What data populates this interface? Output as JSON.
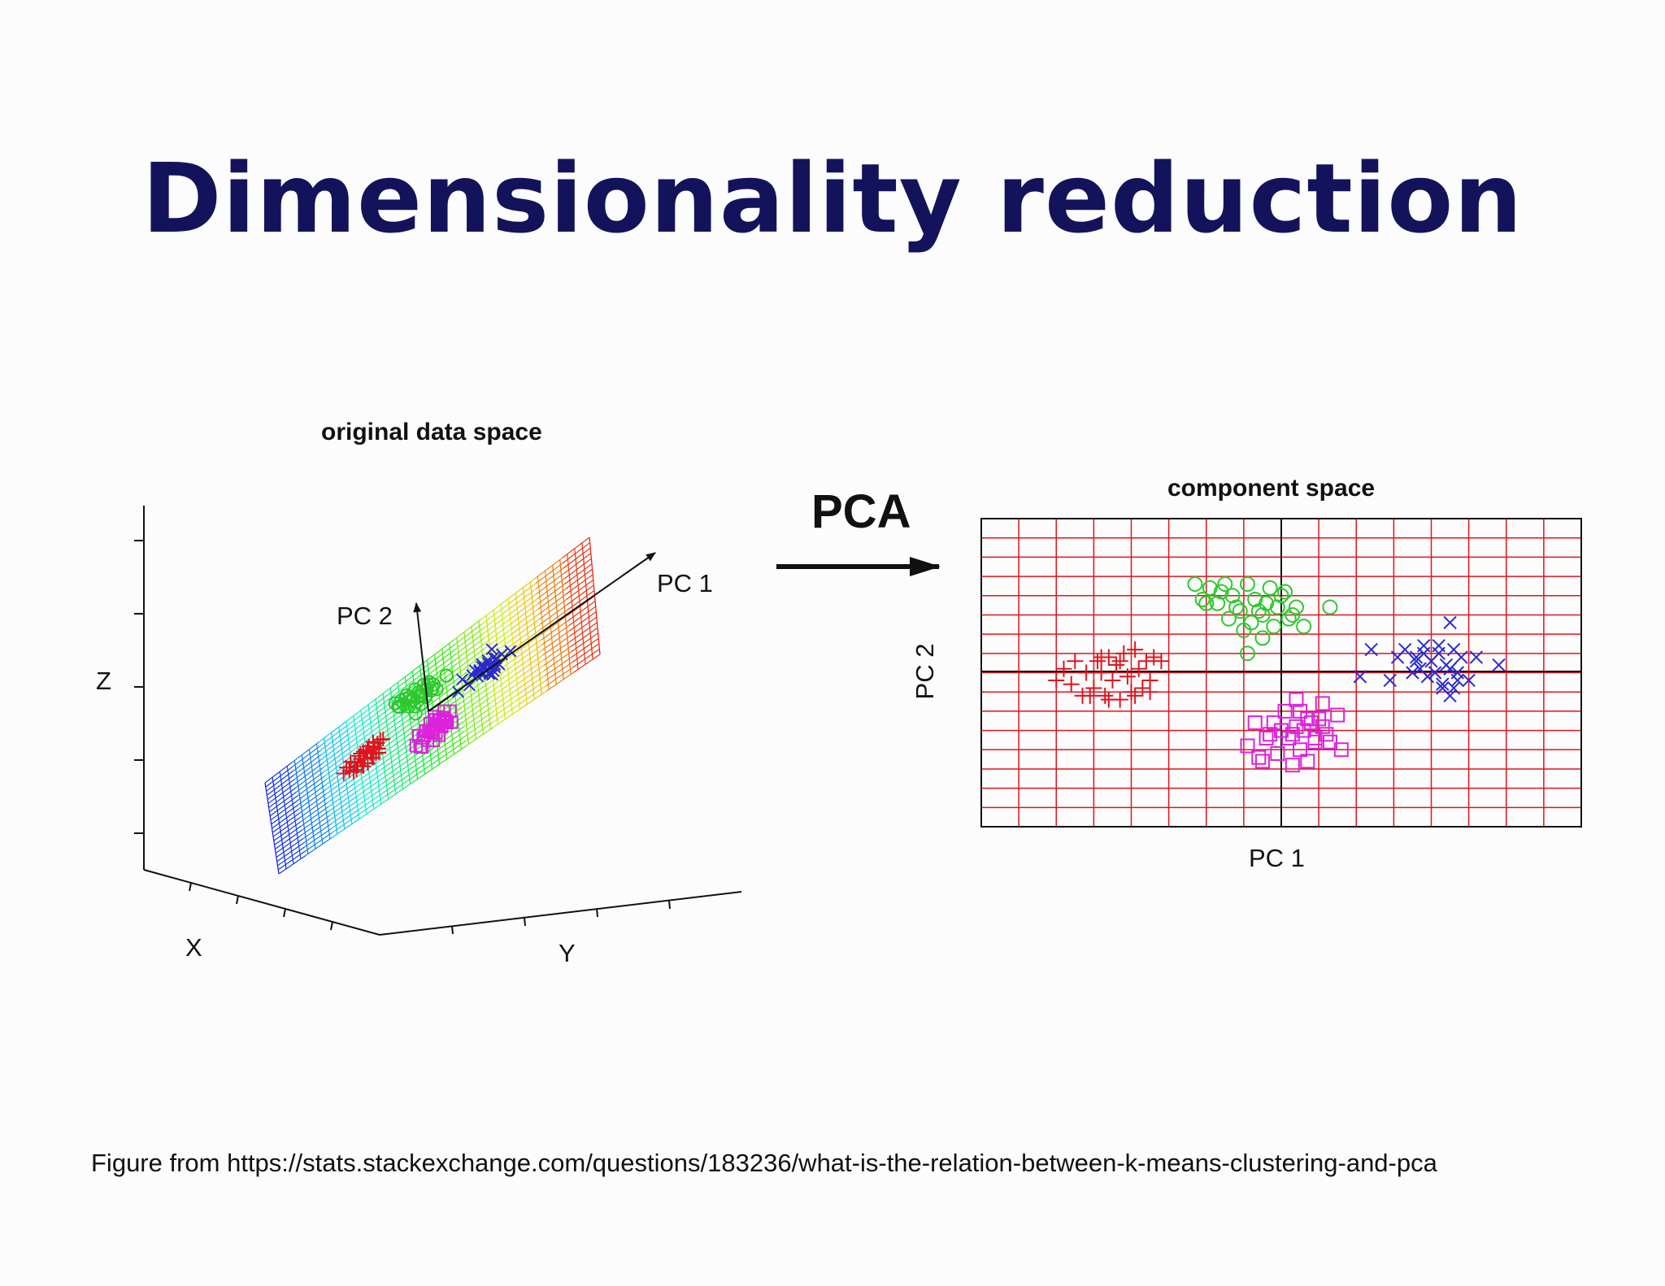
{
  "slide": {
    "title": "Dimensionality reduction",
    "caption": "Figure from https://stats.stackexchange.com/questions/183236/what-is-the-relation-between-k-means-clustering-and-pca"
  },
  "left_panel": {
    "title": "original data space",
    "axis_x": "X",
    "axis_y": "Y",
    "axis_z": "Z",
    "pc1_label": "PC 1",
    "pc2_label": "PC 2"
  },
  "transform": {
    "label": "PCA"
  },
  "right_panel": {
    "title": "component space",
    "xlabel": "PC 1",
    "ylabel": "PC 2"
  },
  "colors": {
    "title": "#13135c",
    "grid": "#e0141e",
    "cluster_plus": "#e0141e",
    "cluster_circle": "#2ec82e",
    "cluster_square": "#dd22dd",
    "cluster_x": "#2a2ad0"
  },
  "chart_data": {
    "type": "scatter",
    "title": "component space",
    "xlabel": "PC 1",
    "ylabel": "PC 2",
    "xlim": [
      -8,
      8
    ],
    "ylim": [
      -4,
      4
    ],
    "series": [
      {
        "name": "plus cluster",
        "marker": "plus",
        "color": "#e0141e",
        "x": [
          -6.0,
          -5.8,
          -5.6,
          -5.5,
          -5.3,
          -5.2,
          -5.0,
          -4.9,
          -4.8,
          -4.7,
          -4.6,
          -4.5,
          -4.4,
          -4.3,
          -4.2,
          -4.1,
          -4.0,
          -3.9,
          -3.8,
          -3.7,
          -3.6,
          -3.5,
          -3.4,
          -3.2,
          -5.1,
          -4.6,
          -4.3,
          -3.9,
          -3.5,
          -4.8
        ],
        "y": [
          -0.2,
          0.1,
          -0.3,
          0.3,
          -0.6,
          0.0,
          -0.4,
          0.3,
          0.0,
          -0.6,
          0.4,
          -0.2,
          0.2,
          -0.7,
          0.5,
          -0.1,
          -0.5,
          0.6,
          0.1,
          -0.4,
          0.3,
          -0.2,
          0.4,
          0.3,
          -0.6,
          -0.7,
          0.3,
          -0.6,
          -0.5,
          0.4
        ]
      },
      {
        "name": "circle cluster",
        "marker": "circle",
        "color": "#2ec82e",
        "x": [
          -2.3,
          -2.1,
          -1.9,
          -1.7,
          -1.5,
          -1.3,
          -1.1,
          -0.9,
          -0.7,
          -0.5,
          -0.3,
          -0.1,
          0.1,
          0.3,
          -2.0,
          -1.6,
          -1.2,
          -0.8,
          -0.4,
          0.0,
          0.4,
          -1.4,
          -1.0,
          -0.6,
          -0.2,
          0.2,
          0.6,
          1.3,
          -0.9,
          -0.5
        ],
        "y": [
          2.3,
          1.9,
          2.2,
          1.8,
          2.3,
          2.0,
          1.6,
          2.3,
          1.9,
          1.5,
          2.2,
          1.7,
          2.1,
          1.5,
          1.8,
          2.1,
          1.7,
          1.3,
          1.8,
          2.0,
          1.7,
          1.4,
          1.1,
          1.6,
          1.2,
          1.4,
          1.2,
          1.7,
          0.5,
          0.9
        ]
      },
      {
        "name": "square cluster",
        "marker": "square",
        "color": "#dd22dd",
        "x": [
          -0.9,
          -0.7,
          -0.5,
          -0.3,
          -0.1,
          0.1,
          0.3,
          0.5,
          0.7,
          0.9,
          1.1,
          1.3,
          1.5,
          -0.4,
          0.0,
          0.4,
          0.8,
          1.2,
          -0.2,
          0.2,
          0.6,
          1.0,
          0.3,
          0.7,
          1.1,
          -0.6,
          0.5,
          0.9,
          1.6,
          0.4
        ],
        "y": [
          -1.9,
          -1.3,
          -2.3,
          -1.6,
          -2.1,
          -1.0,
          -1.6,
          -2.0,
          -1.2,
          -1.7,
          -1.4,
          -1.8,
          -1.1,
          -1.7,
          -1.5,
          -0.7,
          -1.3,
          -1.6,
          -1.3,
          -1.7,
          -1.5,
          -1.2,
          -2.4,
          -2.3,
          -0.8,
          -2.2,
          -1.0,
          -1.8,
          -2.0,
          -1.4
        ]
      },
      {
        "name": "x cluster",
        "marker": "x",
        "color": "#2a2ad0",
        "x": [
          2.1,
          2.4,
          2.9,
          3.1,
          3.3,
          3.5,
          3.6,
          3.7,
          3.8,
          3.9,
          4.0,
          4.1,
          4.2,
          4.3,
          4.4,
          4.5,
          4.6,
          4.7,
          4.8,
          5.0,
          5.2,
          5.8,
          3.6,
          3.8,
          4.3,
          4.5,
          4.6,
          4.7,
          4.5,
          4.2
        ],
        "y": [
          -0.1,
          0.6,
          -0.2,
          0.4,
          0.6,
          0.0,
          0.4,
          0.1,
          0.7,
          -0.1,
          0.3,
          0.0,
          0.5,
          -0.4,
          0.2,
          -0.6,
          0.6,
          -0.2,
          0.4,
          -0.2,
          0.4,
          0.2,
          0.3,
          0.5,
          -0.3,
          0.1,
          -0.4,
          0.0,
          1.3,
          0.7
        ]
      }
    ]
  }
}
